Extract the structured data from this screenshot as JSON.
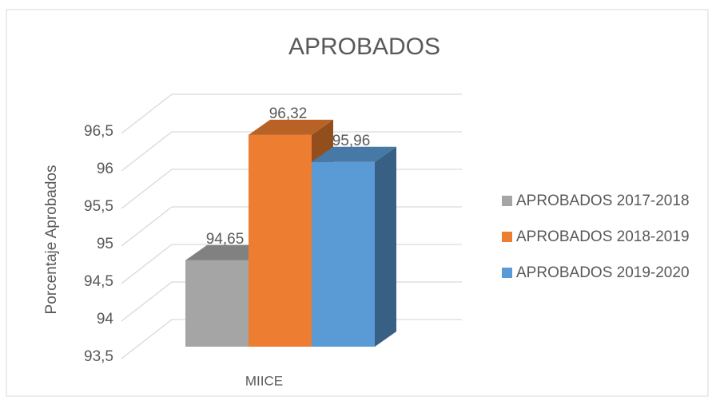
{
  "chart_data": {
    "type": "bar3d",
    "title": "APROBADOS",
    "y_label": "Porcentaje Aprobados",
    "categories": [
      "MIICE"
    ],
    "series": [
      {
        "name": "APROBADOS 2017-2018",
        "color": "#a5a5a5",
        "values": [
          94.65
        ],
        "value_labels": [
          "94,65"
        ]
      },
      {
        "name": "APROBADOS 2018-2019",
        "color": "#ed7d31",
        "values": [
          96.32
        ],
        "value_labels": [
          "96,32"
        ]
      },
      {
        "name": "APROBADOS 2019-2020",
        "color": "#5b9bd5",
        "values": [
          95.96
        ],
        "value_labels": [
          "95,96"
        ]
      }
    ],
    "ylim": [
      93.5,
      96.5
    ],
    "yticks": [
      {
        "value": 93.5,
        "label": "93,5"
      },
      94,
      {
        "value": 94.5,
        "label": "94,5"
      },
      95,
      {
        "value": 95.5,
        "label": "95,5"
      },
      96,
      {
        "value": 96.5,
        "label": "96,5"
      }
    ],
    "grid": true,
    "legend": "right"
  }
}
